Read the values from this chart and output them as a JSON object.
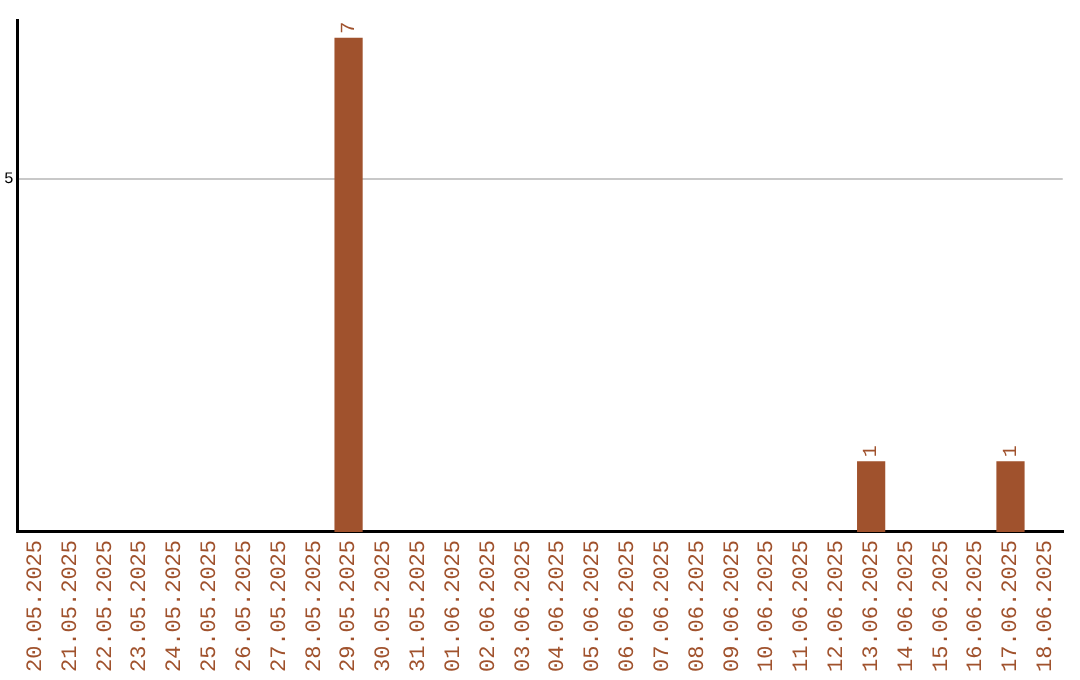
{
  "chart_data": {
    "type": "bar",
    "categories": [
      "20.05.2025",
      "21.05.2025",
      "22.05.2025",
      "23.05.2025",
      "24.05.2025",
      "25.05.2025",
      "26.05.2025",
      "27.05.2025",
      "28.05.2025",
      "29.05.2025",
      "30.05.2025",
      "31.05.2025",
      "01.06.2025",
      "02.06.2025",
      "03.06.2025",
      "04.06.2025",
      "05.06.2025",
      "06.06.2025",
      "07.06.2025",
      "08.06.2025",
      "09.06.2025",
      "10.06.2025",
      "11.06.2025",
      "12.06.2025",
      "13.06.2025",
      "14.06.2025",
      "15.06.2025",
      "16.06.2025",
      "17.06.2025",
      "18.06.2025"
    ],
    "values": [
      0,
      0,
      0,
      0,
      0,
      0,
      0,
      0,
      0,
      7,
      0,
      0,
      0,
      0,
      0,
      0,
      0,
      0,
      0,
      0,
      0,
      0,
      0,
      0,
      1,
      0,
      0,
      0,
      1,
      0
    ],
    "value_labels": [
      null,
      null,
      null,
      null,
      null,
      null,
      null,
      null,
      null,
      "7",
      null,
      null,
      null,
      null,
      null,
      null,
      null,
      null,
      null,
      null,
      null,
      null,
      null,
      null,
      "1",
      null,
      null,
      null,
      "1",
      null
    ],
    "color": "#a0522d",
    "ylim": [
      0,
      7.25
    ],
    "yticks": [
      5
    ],
    "grid": "y",
    "legend": false
  }
}
